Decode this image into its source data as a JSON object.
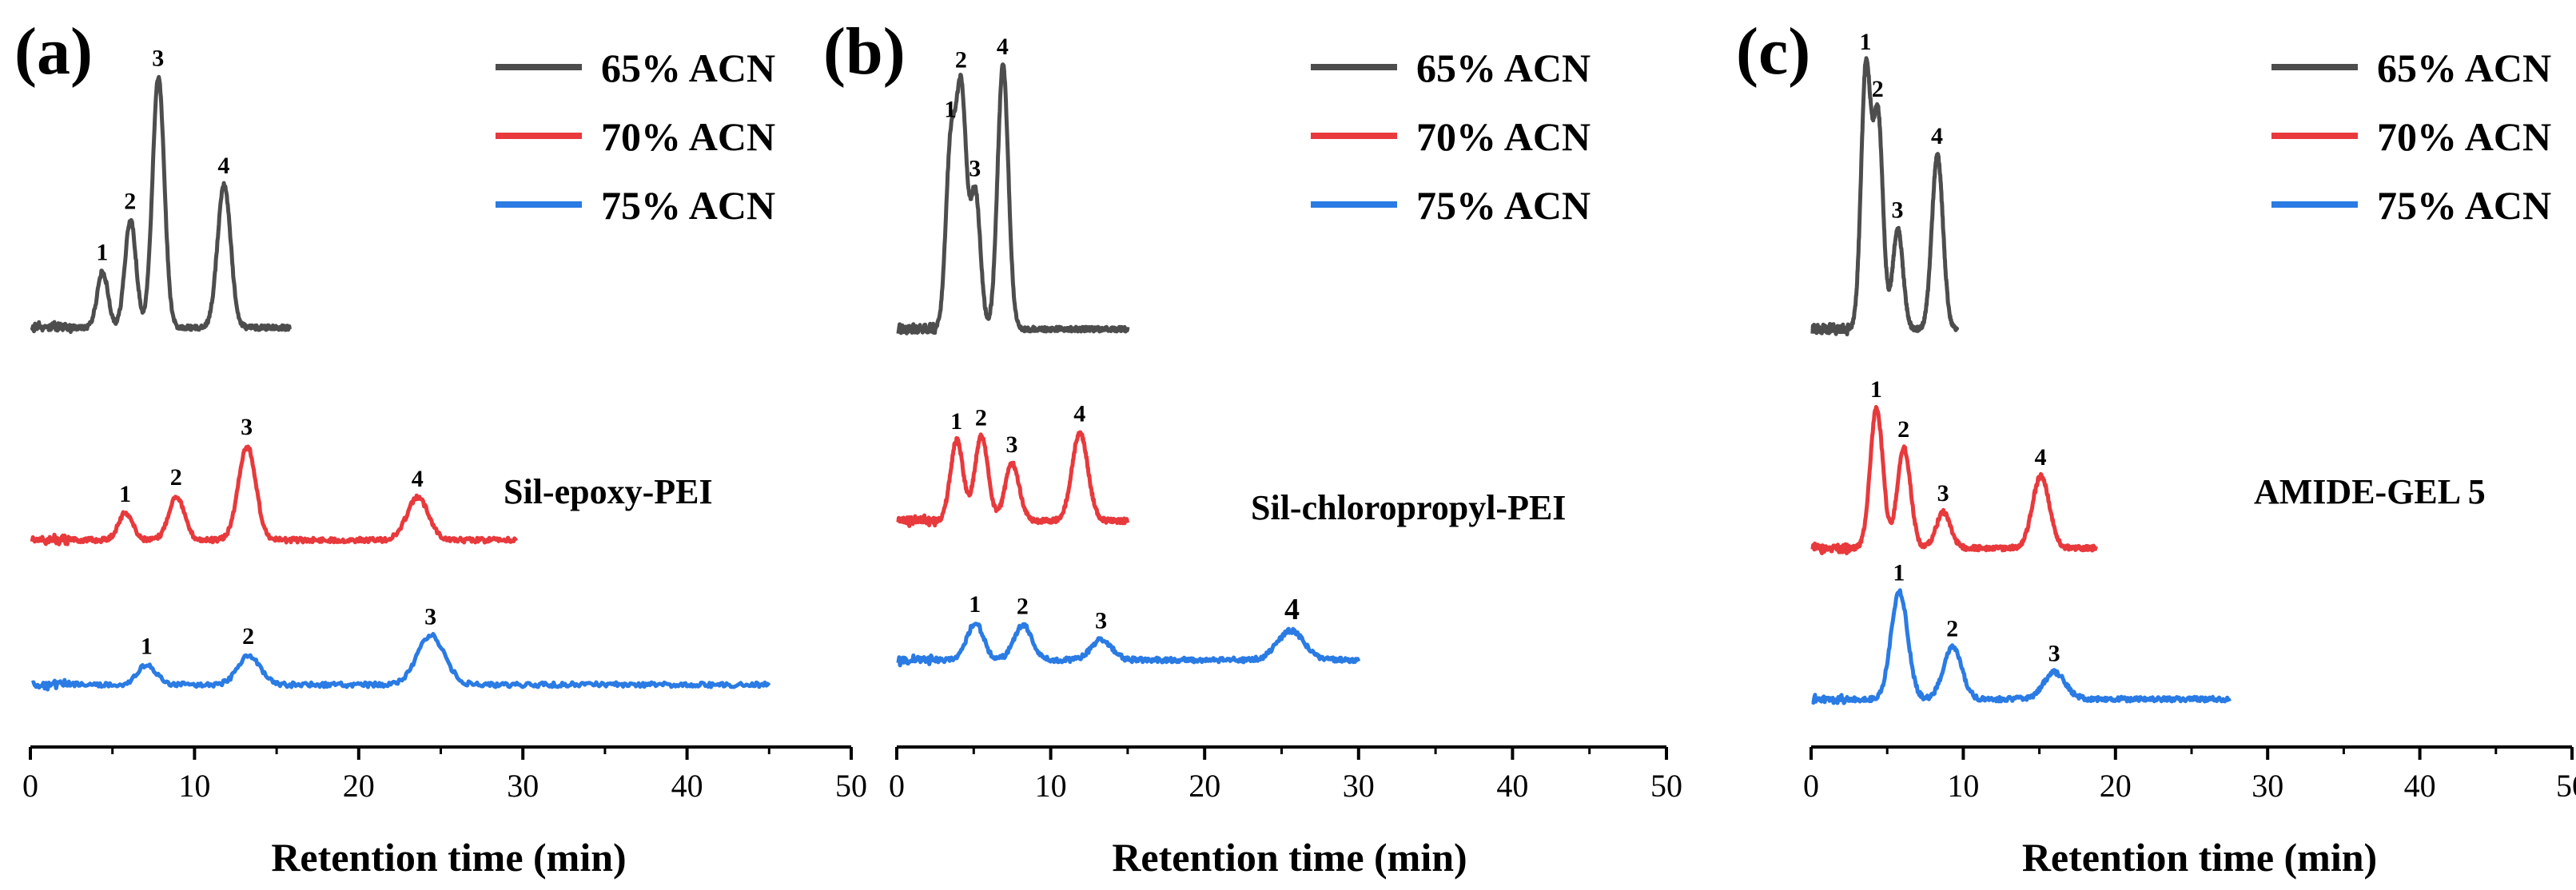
{
  "figure": {
    "colors": {
      "65% ACN": "#4d4d4d",
      "70% ACN": "#e8393c",
      "75% ACN": "#2a7be4"
    }
  },
  "chart_data": [
    {
      "type": "line",
      "panel_label": "(a)",
      "column_name": "Sil-epoxy-PEI",
      "xlabel": "Retention time (min)",
      "ylabel": "",
      "xlim": [
        0,
        50
      ],
      "xticks": [
        "0",
        "10",
        "20",
        "30",
        "40",
        "50"
      ],
      "legend": [
        "65% ACN",
        "70% ACN",
        "75% ACN"
      ],
      "series": [
        {
          "name": "65% ACN",
          "color": "#4d4d4d",
          "end": 15.8,
          "peaks": [
            {
              "label": "1",
              "x": 4.4,
              "h": 0.22
            },
            {
              "label": "2",
              "x": 6.1,
              "h": 0.42
            },
            {
              "label": "3",
              "x": 7.8,
              "h": 0.98
            },
            {
              "label": "4",
              "x": 11.8,
              "h": 0.56
            }
          ]
        },
        {
          "name": "70% ACN",
          "color": "#e8393c",
          "end": 29.6,
          "peaks": [
            {
              "label": "1",
              "x": 5.8,
              "h": 0.18
            },
            {
              "label": "2",
              "x": 8.9,
              "h": 0.29
            },
            {
              "label": "3",
              "x": 13.2,
              "h": 0.62
            },
            {
              "label": "4",
              "x": 23.6,
              "h": 0.28
            }
          ]
        },
        {
          "name": "75% ACN",
          "color": "#2a7be4",
          "end": 45.0,
          "peaks": [
            {
              "label": "1",
              "x": 7.1,
              "h": 0.12
            },
            {
              "label": "2",
              "x": 13.3,
              "h": 0.18
            },
            {
              "label": "3",
              "x": 24.4,
              "h": 0.3
            }
          ]
        }
      ]
    },
    {
      "type": "line",
      "panel_label": "(b)",
      "column_name": "Sil-chloropropyl-PEI",
      "xlabel": "Retention time (min)",
      "ylabel": "",
      "xlim": [
        0,
        50
      ],
      "xticks": [
        "0",
        "10",
        "20",
        "30",
        "40",
        "50"
      ],
      "legend": [
        "65% ACN",
        "70% ACN",
        "75% ACN"
      ],
      "series": [
        {
          "name": "65% ACN",
          "color": "#4d4d4d",
          "end": 15.0,
          "peaks": [
            {
              "label": "1",
              "x": 3.5,
              "h": 0.68
            },
            {
              "label": "2",
              "x": 4.2,
              "h": 0.88
            },
            {
              "label": "3",
              "x": 5.1,
              "h": 0.52
            },
            {
              "label": "4",
              "x": 6.9,
              "h": 1.0
            }
          ]
        },
        {
          "name": "70% ACN",
          "color": "#e8393c",
          "end": 15.0,
          "peaks": [
            {
              "label": "1",
              "x": 3.9,
              "h": 0.42
            },
            {
              "label": "2",
              "x": 5.5,
              "h": 0.44
            },
            {
              "label": "3",
              "x": 7.5,
              "h": 0.3
            },
            {
              "label": "4",
              "x": 11.9,
              "h": 0.46
            }
          ]
        },
        {
          "name": "75% ACN",
          "color": "#2a7be4",
          "end": 30.0,
          "peaks": [
            {
              "label": "1",
              "x": 5.1,
              "h": 0.2
            },
            {
              "label": "2",
              "x": 8.2,
              "h": 0.19
            },
            {
              "label": "3",
              "x": 13.3,
              "h": 0.11
            },
            {
              "label": "4",
              "x": 25.6,
              "h": 0.16
            }
          ]
        }
      ]
    },
    {
      "type": "line",
      "panel_label": "(c)",
      "column_name": "AMIDE-GEL 5",
      "xlabel": "Retention time (min)",
      "ylabel": "",
      "xlim": [
        0,
        50
      ],
      "xticks": [
        "0",
        "10",
        "20",
        "30",
        "40",
        "50"
      ],
      "legend": [
        "65% ACN",
        "70% ACN",
        "75% ACN"
      ],
      "series": [
        {
          "name": "65% ACN",
          "color": "#4d4d4d",
          "end": 9.6,
          "peaks": [
            {
              "label": "1",
              "x": 3.6,
              "h": 0.98
            },
            {
              "label": "2",
              "x": 4.4,
              "h": 0.8
            },
            {
              "label": "3",
              "x": 5.7,
              "h": 0.38
            },
            {
              "label": "4",
              "x": 8.3,
              "h": 0.66
            }
          ]
        },
        {
          "name": "70% ACN",
          "color": "#e8393c",
          "end": 18.8,
          "peaks": [
            {
              "label": "1",
              "x": 4.3,
              "h": 0.7
            },
            {
              "label": "2",
              "x": 6.1,
              "h": 0.5
            },
            {
              "label": "3",
              "x": 8.7,
              "h": 0.18
            },
            {
              "label": "4",
              "x": 15.1,
              "h": 0.36
            }
          ]
        },
        {
          "name": "75% ACN",
          "color": "#2a7be4",
          "end": 27.5,
          "peaks": [
            {
              "label": "1",
              "x": 5.8,
              "h": 0.48
            },
            {
              "label": "2",
              "x": 9.3,
              "h": 0.23
            },
            {
              "label": "3",
              "x": 16.0,
              "h": 0.12
            }
          ]
        }
      ]
    }
  ]
}
